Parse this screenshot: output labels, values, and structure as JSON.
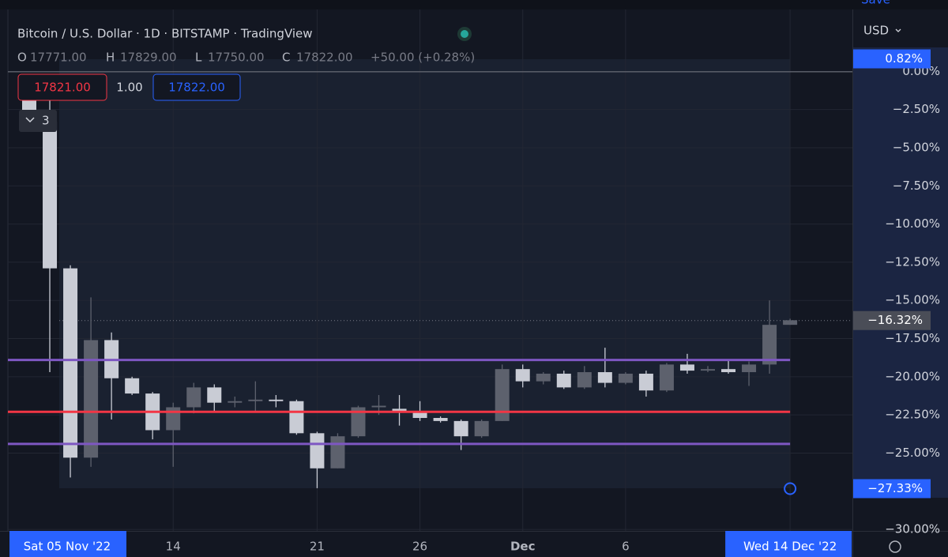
{
  "chart_data": {
    "type": "candlestick",
    "title": "Bitcoin / U.S. Dollar · 1D · BITSTAMP · TradingView",
    "ohlc_legend": {
      "o_label": "O",
      "o_value": "17771.00",
      "h_label": "H",
      "h_value": "17829.00",
      "l_label": "L",
      "l_value": "17750.00",
      "c_label": "C",
      "c_value": "17822.00",
      "change": "+50.00 (+0.28%)"
    },
    "sell_price": "17821.00",
    "spread": "1.00",
    "buy_price": "17822.00",
    "indicator_count": "3",
    "currency": "USD",
    "save_label": "Save",
    "range_start_label": "Sat 05 Nov '22",
    "categories": [
      null,
      null,
      null,
      null,
      null,
      null,
      null,
      "14",
      null,
      null,
      null,
      null,
      null,
      null,
      "21",
      null,
      null,
      null,
      null,
      "26",
      null,
      null,
      null,
      null,
      "Dec",
      null,
      null,
      null,
      null,
      "6",
      null,
      null,
      null,
      null,
      null,
      null,
      null,
      "Wed 14 Dec '22"
    ],
    "open": [
      -1.5,
      -3.3,
      -12.9,
      -25.3,
      -17.6,
      -20.1,
      -21.1,
      -23.5,
      -22.0,
      -20.7,
      -21.7,
      -21.6,
      -21.5,
      -21.6,
      -23.7,
      -26.0,
      -23.9,
      -22.0,
      -22.1,
      -22.3,
      -22.7,
      -22.9,
      -23.9,
      -22.9,
      -19.5,
      -20.3,
      -19.8,
      -20.7,
      -19.7,
      -20.4,
      -19.8,
      -20.9,
      -19.2,
      -19.6,
      -19.5,
      -19.7,
      -19.2,
      -16.6
    ],
    "high": [
      -0.3,
      -0.5,
      -12.7,
      -14.8,
      -17.1,
      -20.0,
      -21.0,
      -21.7,
      -20.4,
      -20.5,
      -21.3,
      -20.3,
      -21.2,
      -21.5,
      -23.6,
      -23.7,
      -21.9,
      -21.2,
      -21.2,
      -21.6,
      -22.6,
      -22.8,
      -22.8,
      -19.2,
      -19.2,
      -19.7,
      -19.6,
      -19.3,
      -18.1,
      -19.7,
      -19.6,
      -19.1,
      -18.5,
      -19.3,
      -18.9,
      -19.0,
      -15.0,
      -16.2
    ],
    "low": [
      -3.8,
      -19.7,
      -26.6,
      -25.9,
      -22.8,
      -21.2,
      -24.1,
      -25.9,
      -22.4,
      -22.3,
      -22.0,
      -22.3,
      -22.0,
      -23.8,
      -27.3,
      -26.0,
      -24.0,
      -22.5,
      -23.2,
      -22.9,
      -23.0,
      -24.8,
      -24.0,
      -22.9,
      -20.7,
      -20.5,
      -20.8,
      -20.8,
      -20.7,
      -20.5,
      -21.3,
      -21.0,
      -19.8,
      -19.7,
      -19.8,
      -20.6,
      -19.8,
      -16.6
    ],
    "close": [
      -3.3,
      -12.9,
      -25.3,
      -17.6,
      -20.1,
      -21.1,
      -23.5,
      -22.0,
      -20.7,
      -21.7,
      -21.6,
      -21.5,
      -21.6,
      -23.7,
      -26.0,
      -23.9,
      -22.0,
      -21.9,
      -22.3,
      -22.7,
      -22.9,
      -23.9,
      -22.9,
      -19.5,
      -20.3,
      -19.8,
      -20.7,
      -19.7,
      -20.4,
      -19.8,
      -20.9,
      -19.2,
      -19.6,
      -19.5,
      -19.7,
      -19.2,
      -16.6,
      -16.3
    ],
    "up_color": "#5d616d",
    "down_color": "#c9ccd5",
    "ylim": [
      -30.1,
      3.9
    ],
    "yticks": [
      {
        "value": 0,
        "label": "0.00%"
      },
      {
        "value": -2.5,
        "label": "−2.50%"
      },
      {
        "value": -5,
        "label": "−5.00%"
      },
      {
        "value": -7.5,
        "label": "−7.50%"
      },
      {
        "value": -10,
        "label": "−10.00%"
      },
      {
        "value": -12.5,
        "label": "−12.50%"
      },
      {
        "value": -15,
        "label": "−15.00%"
      },
      {
        "value": -17.5,
        "label": "−17.50%"
      },
      {
        "value": -20,
        "label": "−20.00%"
      },
      {
        "value": -22.5,
        "label": "−22.50%"
      },
      {
        "value": -25,
        "label": "−25.00%"
      },
      {
        "value": -30,
        "label": "−30.00%"
      }
    ],
    "price_badges": [
      {
        "value": 0.82,
        "label": "0.82%",
        "color": "#2962ff"
      },
      {
        "value": -16.32,
        "label": "−16.32%",
        "color": "#4a4d57"
      },
      {
        "value": -27.33,
        "label": "−27.33%",
        "color": "#2962ff"
      }
    ],
    "levels": [
      {
        "value": -18.9,
        "color": "#7e57c2"
      },
      {
        "value": -22.3,
        "color": "#f23645"
      },
      {
        "value": -24.4,
        "color": "#7e57c2"
      }
    ],
    "grid": true
  }
}
